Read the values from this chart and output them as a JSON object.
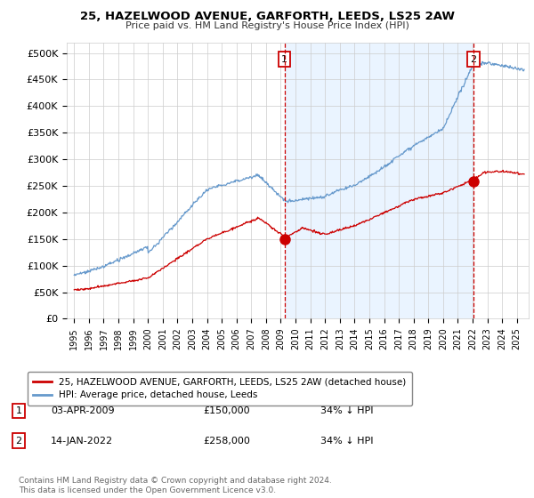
{
  "title": "25, HAZELWOOD AVENUE, GARFORTH, LEEDS, LS25 2AW",
  "subtitle": "Price paid vs. HM Land Registry's House Price Index (HPI)",
  "background_color": "#ffffff",
  "grid_color": "#cccccc",
  "purchase1": {
    "date_num": 2009.25,
    "price": 150000,
    "label": "1",
    "date_str": "03-APR-2009",
    "hpi_diff": "34% ↓ HPI"
  },
  "purchase2": {
    "date_num": 2022.04,
    "price": 258000,
    "label": "2",
    "date_str": "14-JAN-2022",
    "hpi_diff": "34% ↓ HPI"
  },
  "hpi_line_color": "#6699cc",
  "shade_color": "#ddeeff",
  "price_line_color": "#cc0000",
  "legend_label_property": "25, HAZELWOOD AVENUE, GARFORTH, LEEDS, LS25 2AW (detached house)",
  "legend_label_hpi": "HPI: Average price, detached house, Leeds",
  "footnote": "Contains HM Land Registry data © Crown copyright and database right 2024.\nThis data is licensed under the Open Government Licence v3.0.",
  "ylim": [
    0,
    520000
  ],
  "yticks": [
    0,
    50000,
    100000,
    150000,
    200000,
    250000,
    300000,
    350000,
    400000,
    450000,
    500000
  ],
  "ytick_labels": [
    "£0",
    "£50K",
    "£100K",
    "£150K",
    "£200K",
    "£250K",
    "£300K",
    "£350K",
    "£400K",
    "£450K",
    "£500K"
  ],
  "xlim_start": 1994.5,
  "xlim_end": 2025.8,
  "xticks": [
    1995,
    1996,
    1997,
    1998,
    1999,
    2000,
    2001,
    2002,
    2003,
    2004,
    2005,
    2006,
    2007,
    2008,
    2009,
    2010,
    2011,
    2012,
    2013,
    2014,
    2015,
    2016,
    2017,
    2018,
    2019,
    2020,
    2021,
    2022,
    2023,
    2024,
    2025
  ]
}
